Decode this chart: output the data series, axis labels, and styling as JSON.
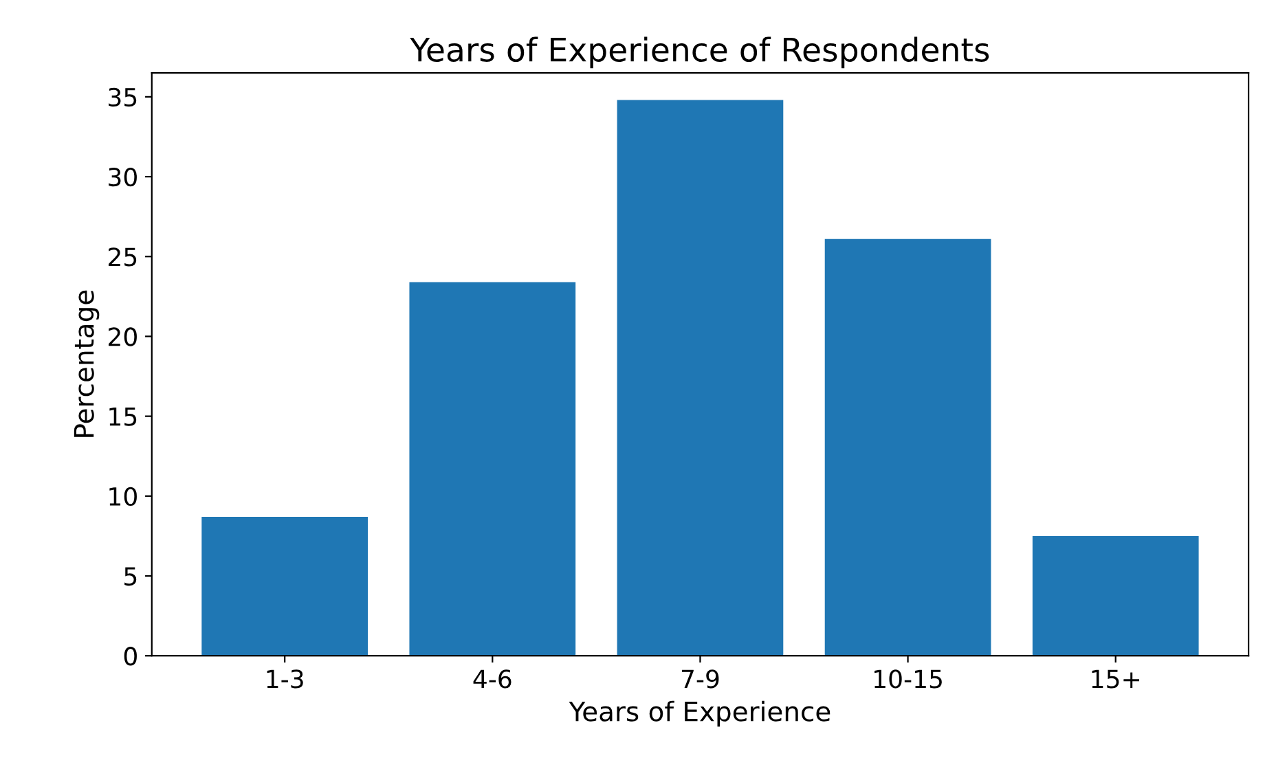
{
  "chart_data": {
    "type": "bar",
    "title": "Years of Experience of Respondents",
    "xlabel": "Years of Experience",
    "ylabel": "Percentage",
    "categories": [
      "1-3",
      "4-6",
      "7-9",
      "10-15",
      "15+"
    ],
    "values": [
      8.7,
      23.4,
      34.8,
      26.1,
      7.5
    ],
    "color": "#1f77b4",
    "ylim": [
      0,
      36.5
    ],
    "yticks": [
      0,
      5,
      10,
      15,
      20,
      25,
      30,
      35
    ],
    "grid": false,
    "legend": false
  }
}
